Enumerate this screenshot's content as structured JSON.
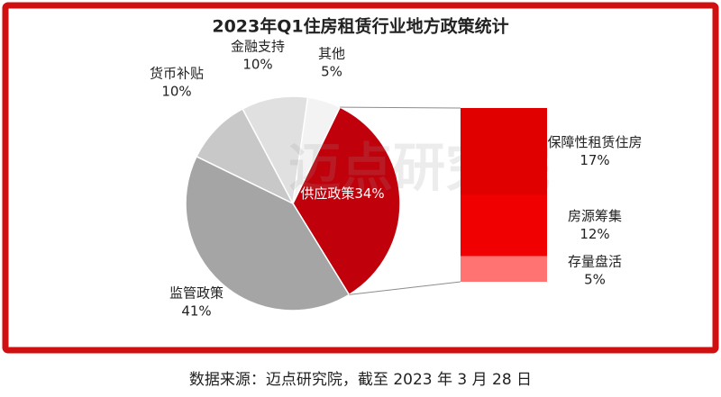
{
  "chart_data": {
    "type": "pie-of-bar",
    "title": "2023年Q1住房租赁行业地方政策统计",
    "categories": [
      "供应政策",
      "监管政策",
      "货币补贴",
      "金融支持",
      "其他"
    ],
    "values": [
      34,
      41,
      10,
      10,
      5
    ],
    "value_labels": [
      "34%",
      "41%",
      "10%",
      "10%",
      "5%"
    ],
    "colors": [
      "#c0000b",
      "#a5a5a5",
      "#c8c8c8",
      "#e0e0e0",
      "#f3f3f3"
    ],
    "breakdown": {
      "categories": [
        "保障性租赁住房",
        "房源筹集",
        "存量盘活"
      ],
      "values": [
        17,
        12,
        5
      ],
      "value_labels": [
        "17%",
        "12%",
        "5%"
      ],
      "colors": [
        "#e00000",
        "#f00000",
        "#ff7373"
      ]
    },
    "watermark": "迈点研究院",
    "source": "数据来源：迈点研究院，截至 2023 年 3 月 28 日"
  }
}
